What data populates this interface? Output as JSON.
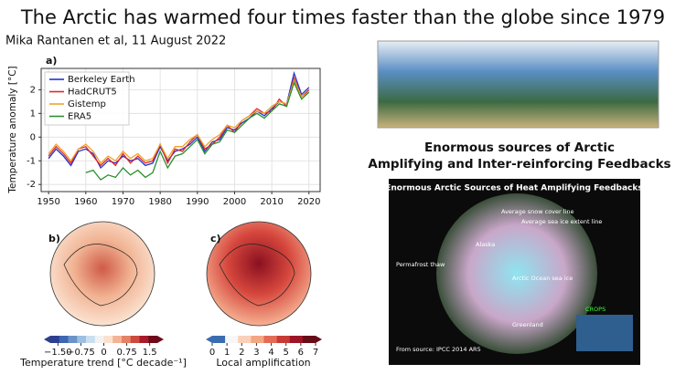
{
  "header": {
    "title": "The Arctic has warmed four times faster than the globe since 1979",
    "subtitle": "Mika Rantanen et al, 11 August 2022"
  },
  "chart_data": {
    "type": "line",
    "panel_label": "a)",
    "y_label": "Temperature anomaly [°C]",
    "x": [
      1950,
      1952,
      1954,
      1956,
      1958,
      1960,
      1962,
      1964,
      1966,
      1968,
      1970,
      1972,
      1974,
      1976,
      1978,
      1980,
      1982,
      1984,
      1986,
      1988,
      1990,
      1992,
      1994,
      1996,
      1998,
      2000,
      2002,
      2004,
      2006,
      2008,
      2010,
      2012,
      2014,
      2016,
      2018,
      2020
    ],
    "xlim": [
      1948,
      2023
    ],
    "xticks": [
      1950,
      1960,
      1970,
      1980,
      1990,
      2000,
      2010,
      2020
    ],
    "ylim": [
      -2.3,
      2.9
    ],
    "yticks": [
      -2,
      -1,
      0,
      1,
      2
    ],
    "grid": true,
    "legend": "upper-left",
    "series": [
      {
        "name": "Berkeley Earth",
        "color": "#2433c9",
        "values": [
          -0.9,
          -0.5,
          -0.8,
          -1.2,
          -0.6,
          -0.5,
          -0.7,
          -1.3,
          -1.0,
          -1.1,
          -0.8,
          -1.0,
          -0.9,
          -1.2,
          -1.1,
          -0.4,
          -1.0,
          -0.6,
          -0.5,
          -0.3,
          0.0,
          -0.6,
          -0.2,
          -0.1,
          0.4,
          0.3,
          0.6,
          0.8,
          1.1,
          0.9,
          1.2,
          1.5,
          1.4,
          2.7,
          1.8,
          2.1
        ]
      },
      {
        "name": "HadCRUT5",
        "color": "#e0262b",
        "values": [
          -0.8,
          -0.4,
          -0.7,
          -1.1,
          -0.5,
          -0.4,
          -0.8,
          -1.2,
          -0.9,
          -1.2,
          -0.7,
          -1.1,
          -0.8,
          -1.1,
          -1.0,
          -0.3,
          -1.1,
          -0.5,
          -0.6,
          -0.2,
          0.1,
          -0.5,
          -0.3,
          0.0,
          0.5,
          0.2,
          0.7,
          0.9,
          1.2,
          1.0,
          1.1,
          1.6,
          1.3,
          2.5,
          1.7,
          2.0
        ]
      },
      {
        "name": "Gistemp",
        "color": "#f0a32a",
        "values": [
          -0.7,
          -0.3,
          -0.6,
          -1.0,
          -0.5,
          -0.3,
          -0.6,
          -1.1,
          -0.8,
          -1.0,
          -0.6,
          -0.9,
          -0.7,
          -1.0,
          -0.9,
          -0.3,
          -0.9,
          -0.4,
          -0.4,
          -0.1,
          0.1,
          -0.4,
          -0.1,
          0.1,
          0.5,
          0.4,
          0.7,
          0.9,
          1.1,
          1.0,
          1.3,
          1.5,
          1.4,
          2.4,
          1.7,
          1.9
        ]
      },
      {
        "name": "ERA5",
        "color": "#2b8f2f",
        "values": [
          null,
          null,
          null,
          null,
          null,
          -1.5,
          -1.4,
          -1.8,
          -1.6,
          -1.7,
          -1.3,
          -1.6,
          -1.4,
          -1.7,
          -1.5,
          -0.6,
          -1.3,
          -0.8,
          -0.7,
          -0.4,
          -0.1,
          -0.7,
          -0.3,
          -0.2,
          0.3,
          0.2,
          0.5,
          0.8,
          1.0,
          0.8,
          1.1,
          1.4,
          1.3,
          2.3,
          1.6,
          1.9
        ]
      }
    ]
  },
  "panels": [
    {
      "panel_label": "b)",
      "label": "Temperature trend [°C decade⁻¹]",
      "lim": [
        -1.75,
        1.75
      ],
      "ticks": [
        {
          "value": -1.5,
          "label": "−1.50"
        },
        {
          "value": -0.75,
          "label": "−0.75"
        },
        0.0,
        0.75,
        1.5
      ],
      "colors": [
        "#2c3f8f",
        "#3f66b0",
        "#6b93c8",
        "#9dbfe0",
        "#cadff0",
        "#f2f2f2",
        "#fbe0cf",
        "#f4b494",
        "#e48266",
        "#cc4a3e",
        "#a8192b",
        "#6e0a1b"
      ]
    },
    {
      "panel_label": "c)",
      "label": "Local amplification",
      "lim": [
        0,
        7
      ],
      "ticks": [
        0,
        1,
        2,
        3,
        4,
        5,
        6,
        7
      ],
      "colors": [
        "#3a6db0",
        "#f7f7f7",
        "#fbd0b9",
        "#f4a582",
        "#e46b55",
        "#c73a35",
        "#9e1427",
        "#670d18"
      ]
    }
  ],
  "right": {
    "heading": [
      "Enormous sources of Arctic",
      "Amplifying and Inter-reinforcing Feedbacks"
    ],
    "infographic": {
      "title": "Enormous Arctic Sources of Heat Amplifying Feedbacks",
      "labels": [
        "Average snow cover line",
        "Average sea ice extent line",
        "Arctic Ocean sea ice",
        "Alaska",
        "Greenland",
        "Permafrost thaw",
        "CROPS",
        "From source: IPCC 2014 AR5"
      ]
    }
  }
}
